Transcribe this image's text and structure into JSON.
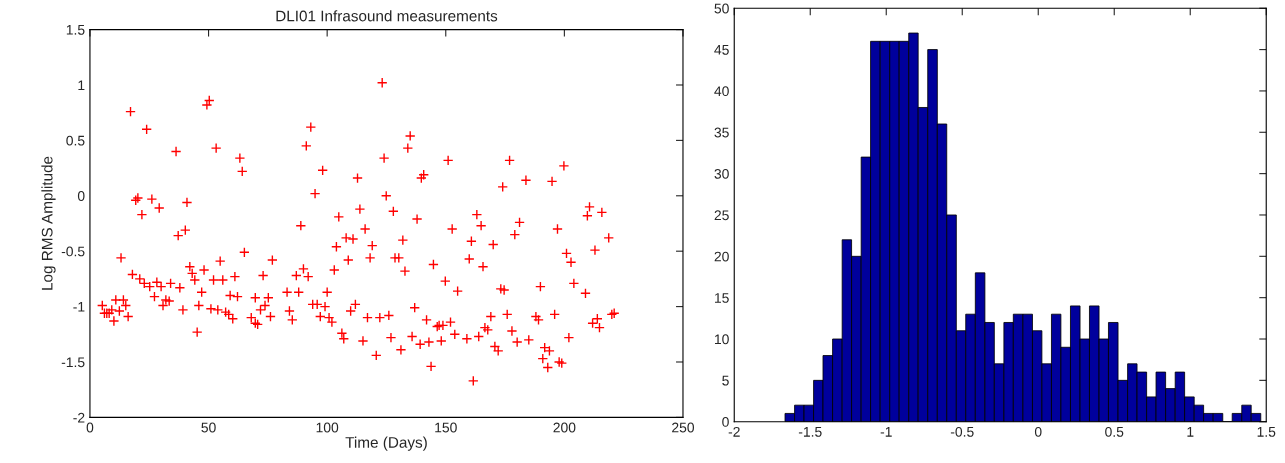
{
  "chart_data": [
    {
      "type": "scatter",
      "title": "DLI01 Infrasound measurements",
      "xlabel": "Time (Days)",
      "ylabel": "Log RMS Amplitude",
      "marker": "cross",
      "grid": false,
      "xlim": [
        0,
        250
      ],
      "xticks": [
        0,
        50,
        100,
        150,
        200,
        250
      ],
      "ylim": [
        -2,
        1.5
      ],
      "yticks": [
        -2,
        -1.5,
        -1,
        -0.5,
        0,
        0.5,
        1,
        1.5
      ],
      "series": [
        {
          "color": "#ff0000",
          "x": [
            17.1,
            23.9,
            36.3,
            49.3,
            50.3,
            53.2,
            63.2,
            64.2,
            19.3,
            20.2,
            26.1,
            29.2,
            21.9,
            40.9,
            37.2,
            40.2,
            65.1,
            13.1,
            17.9,
            21.0,
            22.9,
            25.2,
            28.2,
            30.0,
            34.0,
            37.9,
            42.1,
            43.1,
            44.2,
            48.1,
            54.9,
            52.1,
            56.0,
            61.1,
            73.0,
            76.9,
            5.2,
            6.1,
            7.1,
            8.1,
            9.2,
            10.1,
            10.9,
            12.4,
            14.1,
            15.1,
            16.1,
            27.2,
            30.8,
            32.0,
            33.4,
            39.2,
            45.9,
            47.1,
            45.2,
            51.0,
            53.9,
            57.2,
            58.5,
            60.2,
            59.1,
            62.2,
            68.0,
            69.7,
            70.7,
            69.7,
            71.9,
            73.8,
            75.2,
            76.1,
            83.1,
            84.1,
            85.3,
            88.0,
            87.0,
            90.0,
            92.0,
            88.9,
            93.1,
            91.2,
            98.1,
            94.9,
            104.9,
            112.8,
            113.8,
            116.0,
            108.0,
            110.9,
            103.9,
            108.9,
            103.0,
            100.0,
            93.9,
            95.8,
            99.1,
            97.1,
            100.8,
            102.0,
            106.2,
            107.0,
            109.9,
            111.9,
            115.1,
            117.0,
            120.7,
            122.2,
            126.0,
            123.2,
            124.0,
            124.9,
            127.9,
            119.0,
            118.1,
            126.9,
            131.1,
            131.9,
            128.6,
            130.2,
            132.8,
            135.0,
            134.0,
            137.9,
            139.7,
            140.7,
            136.9,
            135.8,
            139.2,
            141.9,
            142.9,
            143.8,
            144.8,
            146.4,
            147.2,
            148.8,
            148.1,
            152.0,
            153.8,
            149.8,
            151.0,
            152.7,
            155.0,
            158.9,
            161.6,
            163.9,
            163.1,
            164.9,
            160.8,
            159.9,
            165.7,
            166.5,
            167.7,
            170.0,
            169.0,
            170.7,
            172.1,
            173.2,
            174.6,
            174.0,
            176.9,
            175.9,
            177.9,
            179.1,
            181.1,
            180.1,
            183.8,
            185.0,
            188.0,
            189.1,
            189.9,
            191.7,
            190.9,
            193.7,
            193.0,
            194.8,
            195.9,
            197.1,
            197.8,
            198.9,
            199.8,
            200.9,
            201.9,
            202.8,
            204.0,
            208.9,
            209.7,
            210.6,
            212.9,
            211.9,
            213.9,
            214.8,
            215.8,
            218.7,
            220.0,
            221.0
          ],
          "values": [
            0.76,
            0.6,
            0.4,
            0.82,
            0.86,
            0.43,
            0.34,
            0.22,
            -0.04,
            -0.02,
            -0.03,
            -0.11,
            -0.17,
            -0.06,
            -0.36,
            -0.31,
            -0.51,
            -0.56,
            -0.71,
            -0.75,
            -0.79,
            -0.82,
            -0.78,
            -0.82,
            -0.79,
            -0.83,
            -0.64,
            -0.7,
            -0.76,
            -0.67,
            -0.59,
            -0.76,
            -0.76,
            -0.73,
            -0.72,
            -0.58,
            -0.99,
            -1.06,
            -1.06,
            -1.06,
            -1.03,
            -1.13,
            -0.94,
            -1.04,
            -0.94,
            -0.99,
            -1.09,
            -0.91,
            -0.99,
            -0.94,
            -0.95,
            -1.03,
            -0.99,
            -0.87,
            -1.23,
            -1.02,
            -1.03,
            -1.05,
            -1.07,
            -1.11,
            -0.9,
            -0.91,
            -1.1,
            -1.15,
            -1.16,
            -0.92,
            -1.03,
            -0.99,
            -0.92,
            -1.09,
            -0.87,
            -1.04,
            -1.12,
            -0.87,
            -0.72,
            -0.66,
            -0.73,
            -0.27,
            0.62,
            0.45,
            0.23,
            0.02,
            -0.19,
            0.16,
            -0.12,
            -0.3,
            -0.38,
            -0.39,
            -0.46,
            -0.58,
            -0.67,
            -0.87,
            -0.98,
            -0.98,
            -1.0,
            -1.09,
            -1.1,
            -1.14,
            -1.24,
            -1.29,
            -1.04,
            -0.98,
            -1.31,
            -1.1,
            -1.44,
            -1.1,
            -1.08,
            1.02,
            0.34,
            0.0,
            -0.14,
            -0.45,
            -0.56,
            -1.28,
            -1.39,
            -0.4,
            -0.56,
            -0.56,
            -0.68,
            0.54,
            0.43,
            -0.21,
            0.16,
            0.19,
            -1.01,
            -1.27,
            -1.34,
            -1.12,
            -1.32,
            -1.54,
            -0.62,
            -1.18,
            -1.17,
            -1.17,
            -1.31,
            -1.14,
            -1.25,
            -0.77,
            0.32,
            -0.3,
            -0.86,
            -1.29,
            -1.67,
            -1.27,
            -0.17,
            -0.27,
            -0.41,
            -0.57,
            -0.64,
            -1.19,
            -1.21,
            -0.44,
            -1.09,
            -1.36,
            -1.4,
            -0.84,
            -0.85,
            0.08,
            0.32,
            -1.07,
            -1.22,
            -0.35,
            -0.24,
            -1.32,
            0.14,
            -1.3,
            -1.09,
            -1.12,
            -0.82,
            -1.37,
            -1.47,
            -1.4,
            -1.55,
            0.13,
            -1.07,
            -0.3,
            -1.5,
            -1.51,
            0.27,
            -0.52,
            -1.28,
            -0.6,
            -0.79,
            -0.88,
            -0.18,
            -0.1,
            -0.49,
            -1.15,
            -1.11,
            -1.19,
            -0.15,
            -0.38,
            -1.07,
            -1.06
          ]
        }
      ]
    },
    {
      "type": "histogram",
      "grid": false,
      "color": "#00009c",
      "xlim": [
        -2,
        1.5
      ],
      "xticks": [
        -2,
        -1.5,
        -1,
        -0.5,
        0,
        0.5,
        1,
        1.5
      ],
      "ylim": [
        0,
        50
      ],
      "yticks": [
        0,
        5,
        10,
        15,
        20,
        25,
        30,
        35,
        40,
        45,
        50
      ],
      "bins": [
        -1.666,
        -1.603,
        -1.541,
        -1.478,
        -1.416,
        -1.353,
        -1.29,
        -1.228,
        -1.165,
        -1.103,
        -1.04,
        -0.977,
        -0.915,
        -0.852,
        -0.79,
        -0.727,
        -0.664,
        -0.602,
        -0.539,
        -0.477,
        -0.414,
        -0.351,
        -0.289,
        -0.226,
        -0.164,
        -0.101,
        -0.038,
        0.024,
        0.087,
        0.149,
        0.212,
        0.275,
        0.337,
        0.4,
        0.462,
        0.525,
        0.588,
        0.65,
        0.713,
        0.775,
        0.838,
        0.901,
        0.963,
        1.026,
        1.088,
        1.151,
        1.214,
        1.276,
        1.339,
        1.401,
        1.464
      ],
      "values": [
        1,
        2,
        2,
        5,
        8,
        10,
        22,
        20,
        32,
        46,
        46,
        46,
        46,
        47,
        38,
        45,
        36,
        25,
        11,
        13,
        18,
        12,
        7,
        12,
        13,
        13,
        11,
        7,
        13,
        9,
        14,
        10,
        14,
        10,
        12,
        5,
        7,
        6,
        3,
        6,
        4,
        6,
        3,
        2,
        1,
        1,
        0,
        1,
        2,
        1
      ]
    }
  ]
}
